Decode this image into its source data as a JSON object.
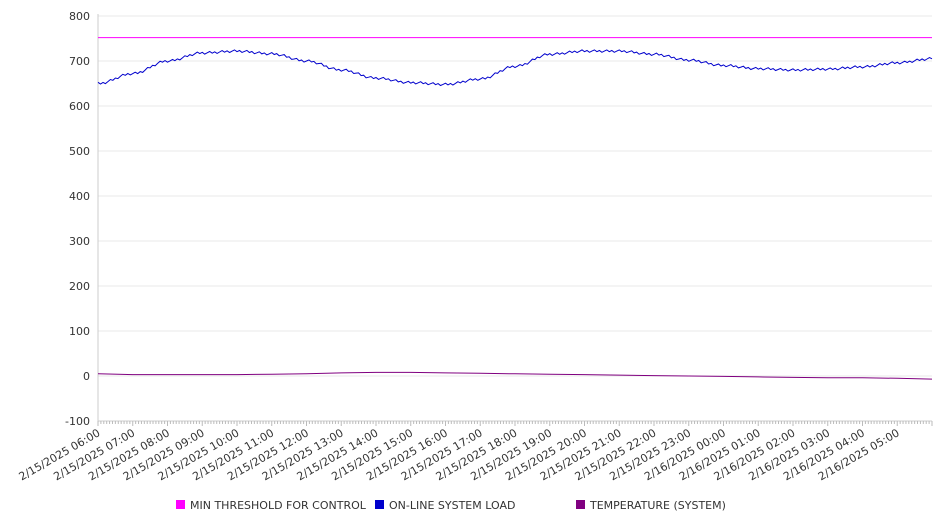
{
  "chart_data": {
    "type": "line",
    "title": "",
    "xlabel": "",
    "ylabel": "",
    "ylim": [
      -100,
      800
    ],
    "yticks": [
      -100,
      0,
      100,
      200,
      300,
      400,
      500,
      600,
      700,
      800
    ],
    "xlim": [
      "2/15/2025 06:00",
      "2/16/2025 06:00"
    ],
    "xticks": [
      "2/15/2025 06:00",
      "2/15/2025 07:00",
      "2/15/2025 08:00",
      "2/15/2025 09:00",
      "2/15/2025 10:00",
      "2/15/2025 11:00",
      "2/15/2025 12:00",
      "2/15/2025 13:00",
      "2/15/2025 14:00",
      "2/15/2025 15:00",
      "2/15/2025 16:00",
      "2/15/2025 17:00",
      "2/15/2025 18:00",
      "2/15/2025 19:00",
      "2/15/2025 20:00",
      "2/15/2025 21:00",
      "2/15/2025 22:00",
      "2/15/2025 23:00",
      "2/16/2025 00:00",
      "2/16/2025 01:00",
      "2/16/2025 02:00",
      "2/16/2025 03:00",
      "2/16/2025 04:00",
      "2/16/2025 05:00"
    ],
    "grid": true,
    "legend_position": "bottom",
    "series": [
      {
        "name": "MIN THRESHOLD FOR CONTROL",
        "color": "#ff00ff",
        "x": [
          "2/15/2025 06:00",
          "2/16/2025 06:00"
        ],
        "y": [
          752,
          752
        ]
      },
      {
        "name": "ON-LINE SYSTEM LOAD",
        "color": "#0000cc",
        "x": [
          "2/15/2025 06:00",
          "2/15/2025 07:00",
          "2/15/2025 08:00",
          "2/15/2025 09:00",
          "2/15/2025 10:00",
          "2/15/2025 11:00",
          "2/15/2025 12:00",
          "2/15/2025 13:00",
          "2/15/2025 14:00",
          "2/15/2025 15:00",
          "2/15/2025 16:00",
          "2/15/2025 17:00",
          "2/15/2025 18:00",
          "2/15/2025 19:00",
          "2/15/2025 20:00",
          "2/15/2025 21:00",
          "2/15/2025 22:00",
          "2/15/2025 23:00",
          "2/16/2025 00:00",
          "2/16/2025 01:00",
          "2/16/2025 02:00",
          "2/16/2025 03:00",
          "2/16/2025 04:00",
          "2/16/2025 05:00",
          "2/16/2025 06:00"
        ],
        "y": [
          650,
          672,
          700,
          718,
          722,
          716,
          700,
          680,
          662,
          652,
          648,
          660,
          688,
          715,
          722,
          722,
          715,
          702,
          690,
          683,
          680,
          682,
          687,
          696,
          705
        ]
      },
      {
        "name": "TEMPERATURE (SYSTEM)",
        "color": "#800080",
        "x": [
          "2/15/2025 06:00",
          "2/15/2025 07:00",
          "2/15/2025 08:00",
          "2/15/2025 09:00",
          "2/15/2025 10:00",
          "2/15/2025 11:00",
          "2/15/2025 12:00",
          "2/15/2025 13:00",
          "2/15/2025 14:00",
          "2/15/2025 15:00",
          "2/15/2025 16:00",
          "2/15/2025 17:00",
          "2/15/2025 18:00",
          "2/15/2025 19:00",
          "2/15/2025 20:00",
          "2/15/2025 21:00",
          "2/15/2025 22:00",
          "2/15/2025 23:00",
          "2/16/2025 00:00",
          "2/16/2025 01:00",
          "2/16/2025 02:00",
          "2/16/2025 03:00",
          "2/16/2025 04:00",
          "2/16/2025 05:00",
          "2/16/2025 06:00"
        ],
        "y": [
          5,
          3,
          3,
          3,
          3,
          4,
          5,
          7,
          8,
          8,
          7,
          6,
          5,
          4,
          3,
          2,
          1,
          0,
          -1,
          -2,
          -3,
          -4,
          -4,
          -5,
          -7
        ]
      }
    ]
  }
}
